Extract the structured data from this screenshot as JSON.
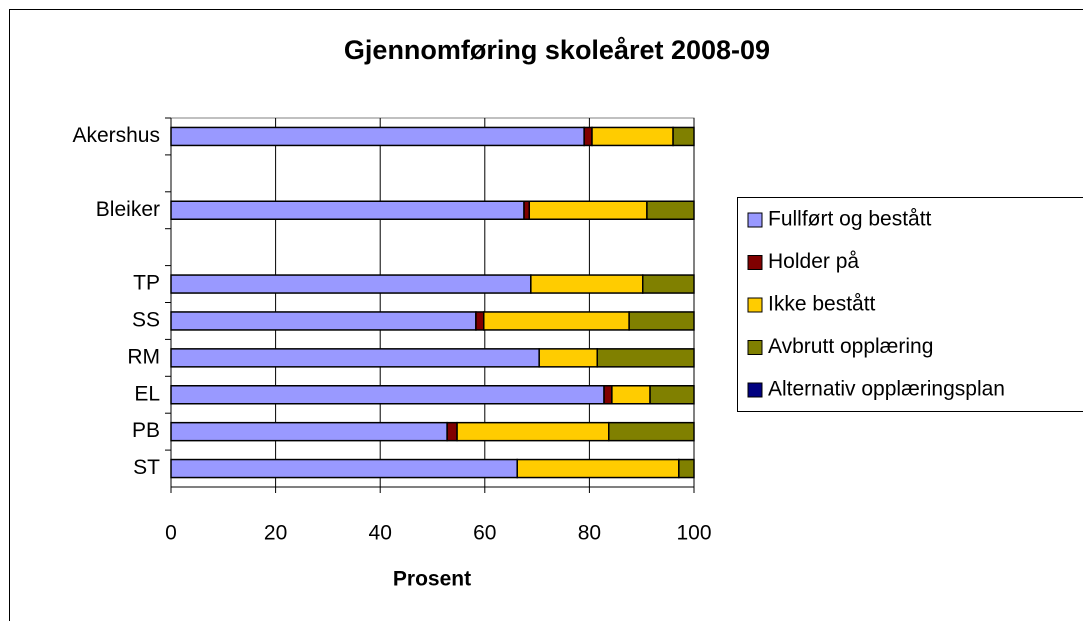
{
  "chart_data": {
    "type": "bar",
    "orientation": "horizontal",
    "stacked": true,
    "title": "Gjennomføring skoleåret 2008-09",
    "xlabel": "Prosent",
    "categories": [
      "Akershus",
      null,
      "Bleiker",
      null,
      "TP",
      "SS",
      "RM",
      "EL",
      "PB",
      "ST"
    ],
    "series": [
      {
        "name": "Fullført og bestått",
        "color": "#9999ff",
        "values": [
          79,
          null,
          67.5,
          null,
          68.8,
          58.3,
          70.4,
          82.8,
          52.8,
          66.2
        ]
      },
      {
        "name": "Holder på",
        "color": "#800000",
        "values": [
          1.5,
          null,
          1,
          null,
          0,
          1.5,
          0,
          1.5,
          1.9,
          0
        ]
      },
      {
        "name": "Ikke bestått",
        "color": "#ffcc00",
        "values": [
          15.5,
          null,
          22.5,
          null,
          21.4,
          27.8,
          11.1,
          7.3,
          29,
          30.9
        ]
      },
      {
        "name": "Avbrutt opplæring",
        "color": "#808000",
        "values": [
          4,
          null,
          9,
          null,
          9.8,
          12.4,
          18.5,
          8.4,
          16.3,
          2.9
        ]
      },
      {
        "name": "Alternativ opplæringsplan",
        "color": "#000080",
        "values": [
          0,
          null,
          0,
          null,
          0,
          0,
          0,
          0,
          0,
          0
        ]
      }
    ],
    "xlim": [
      0,
      100
    ],
    "xticks": [
      0,
      20,
      40,
      60,
      80,
      100
    ],
    "grid": true,
    "legend": "right"
  }
}
